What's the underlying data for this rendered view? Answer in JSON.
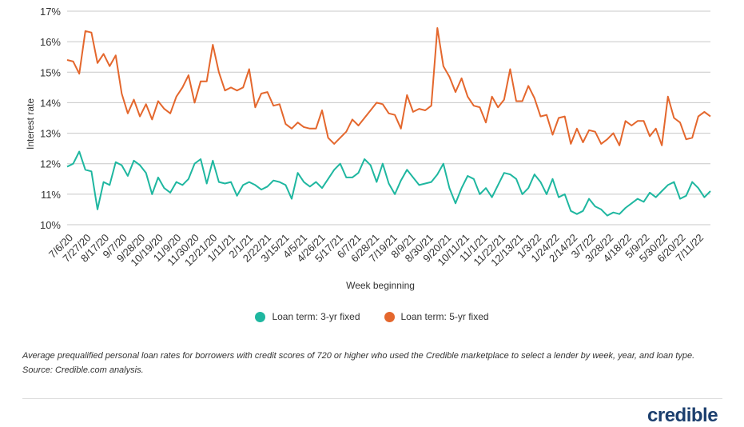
{
  "chart_data": {
    "type": "line",
    "xlabel": "Week beginning",
    "ylabel": "Interest rate",
    "ylim": [
      10,
      17
    ],
    "yticks": [
      "10%",
      "11%",
      "12%",
      "13%",
      "14%",
      "15%",
      "16%",
      "17%"
    ],
    "grid": "horizontal",
    "legend_position": "bottom-center",
    "x_tick_labels": [
      "7/6/20",
      "7/27/20",
      "8/17/20",
      "9/7/20",
      "9/28/20",
      "10/19/20",
      "11/9/20",
      "11/30/20",
      "12/21/20",
      "1/11/21",
      "2/1/21",
      "2/22/21",
      "3/15/21",
      "4/5/21",
      "4/26/21",
      "5/17/21",
      "6/7/21",
      "6/28/21",
      "7/19/21",
      "8/9/21",
      "8/30/21",
      "9/20/21",
      "10/11/21",
      "11/1/21",
      "11/22/21",
      "12/13/21",
      "1/3/22",
      "1/24/22",
      "2/14/22",
      "3/7/22",
      "3/28/22",
      "4/18/22",
      "5/9/22",
      "5/30/22",
      "6/20/22",
      "7/11/22"
    ],
    "series": [
      {
        "name": "Loan term: 3-yr fixed",
        "color": "#1fb7a0",
        "values": [
          11.9,
          12.0,
          12.4,
          11.8,
          11.75,
          10.5,
          11.4,
          11.3,
          12.05,
          11.95,
          11.6,
          12.1,
          11.95,
          11.7,
          11.0,
          11.55,
          11.2,
          11.05,
          11.4,
          11.3,
          11.5,
          12.0,
          12.15,
          11.35,
          12.1,
          11.4,
          11.35,
          11.4,
          10.95,
          11.3,
          11.4,
          11.3,
          11.15,
          11.25,
          11.45,
          11.4,
          11.3,
          10.85,
          11.7,
          11.4,
          11.25,
          11.4,
          11.2,
          11.5,
          11.8,
          12.0,
          11.55,
          11.55,
          11.7,
          12.15,
          11.95,
          11.4,
          12.0,
          11.35,
          11.0,
          11.45,
          11.8,
          11.55,
          11.3,
          11.35,
          11.4,
          11.65,
          12.0,
          11.2,
          10.7,
          11.2,
          11.6,
          11.5,
          11.0,
          11.2,
          10.9,
          11.3,
          11.7,
          11.65,
          11.5,
          11.0,
          11.2,
          11.65,
          11.4,
          11.0,
          11.5,
          10.9,
          11.0,
          10.45,
          10.35,
          10.45,
          10.85,
          10.6,
          10.5,
          10.3,
          10.4,
          10.35,
          10.55,
          10.7,
          10.85,
          10.75,
          11.05,
          10.9,
          11.1,
          11.3,
          11.4,
          10.85,
          10.95,
          11.4,
          11.2,
          10.9,
          11.1
        ]
      },
      {
        "name": "Loan term: 5-yr fixed",
        "color": "#e4672d",
        "values": [
          15.4,
          15.35,
          14.95,
          16.35,
          16.3,
          15.3,
          15.6,
          15.2,
          15.55,
          14.3,
          13.65,
          14.1,
          13.55,
          13.95,
          13.45,
          14.05,
          13.8,
          13.65,
          14.2,
          14.5,
          14.9,
          14.0,
          14.7,
          14.7,
          15.9,
          15.0,
          14.4,
          14.5,
          14.4,
          14.5,
          15.1,
          13.85,
          14.3,
          14.35,
          13.9,
          13.95,
          13.3,
          13.15,
          13.35,
          13.2,
          13.15,
          13.15,
          13.75,
          12.85,
          12.65,
          12.85,
          13.05,
          13.45,
          13.25,
          13.5,
          13.75,
          14.0,
          13.95,
          13.65,
          13.6,
          13.15,
          14.25,
          13.7,
          13.8,
          13.75,
          13.9,
          16.45,
          15.2,
          14.85,
          14.35,
          14.8,
          14.2,
          13.9,
          13.85,
          13.35,
          14.2,
          13.85,
          14.1,
          15.1,
          14.05,
          14.05,
          14.55,
          14.15,
          13.55,
          13.6,
          12.95,
          13.5,
          13.55,
          12.65,
          13.15,
          12.7,
          13.1,
          13.05,
          12.65,
          12.8,
          13.0,
          12.6,
          13.4,
          13.25,
          13.4,
          13.4,
          12.9,
          13.15,
          12.6,
          14.2,
          13.5,
          13.35,
          12.8,
          12.85,
          13.55,
          13.7,
          13.55
        ]
      }
    ]
  },
  "legend": [
    {
      "label": "Loan term: 3-yr fixed",
      "color": "#1fb7a0"
    },
    {
      "label": "Loan term: 5-yr fixed",
      "color": "#e4672d"
    }
  ],
  "caption": "Average prequalified personal loan rates for borrowers with credit scores of 720 or higher who used the Credible marketplace to select a lender by week, year, and loan type. Source: Credible.com analysis.",
  "logo_text": "credible",
  "colors": {
    "grid": "#c8c8c8",
    "text": "#333333",
    "logo": "#1c3f6e"
  }
}
